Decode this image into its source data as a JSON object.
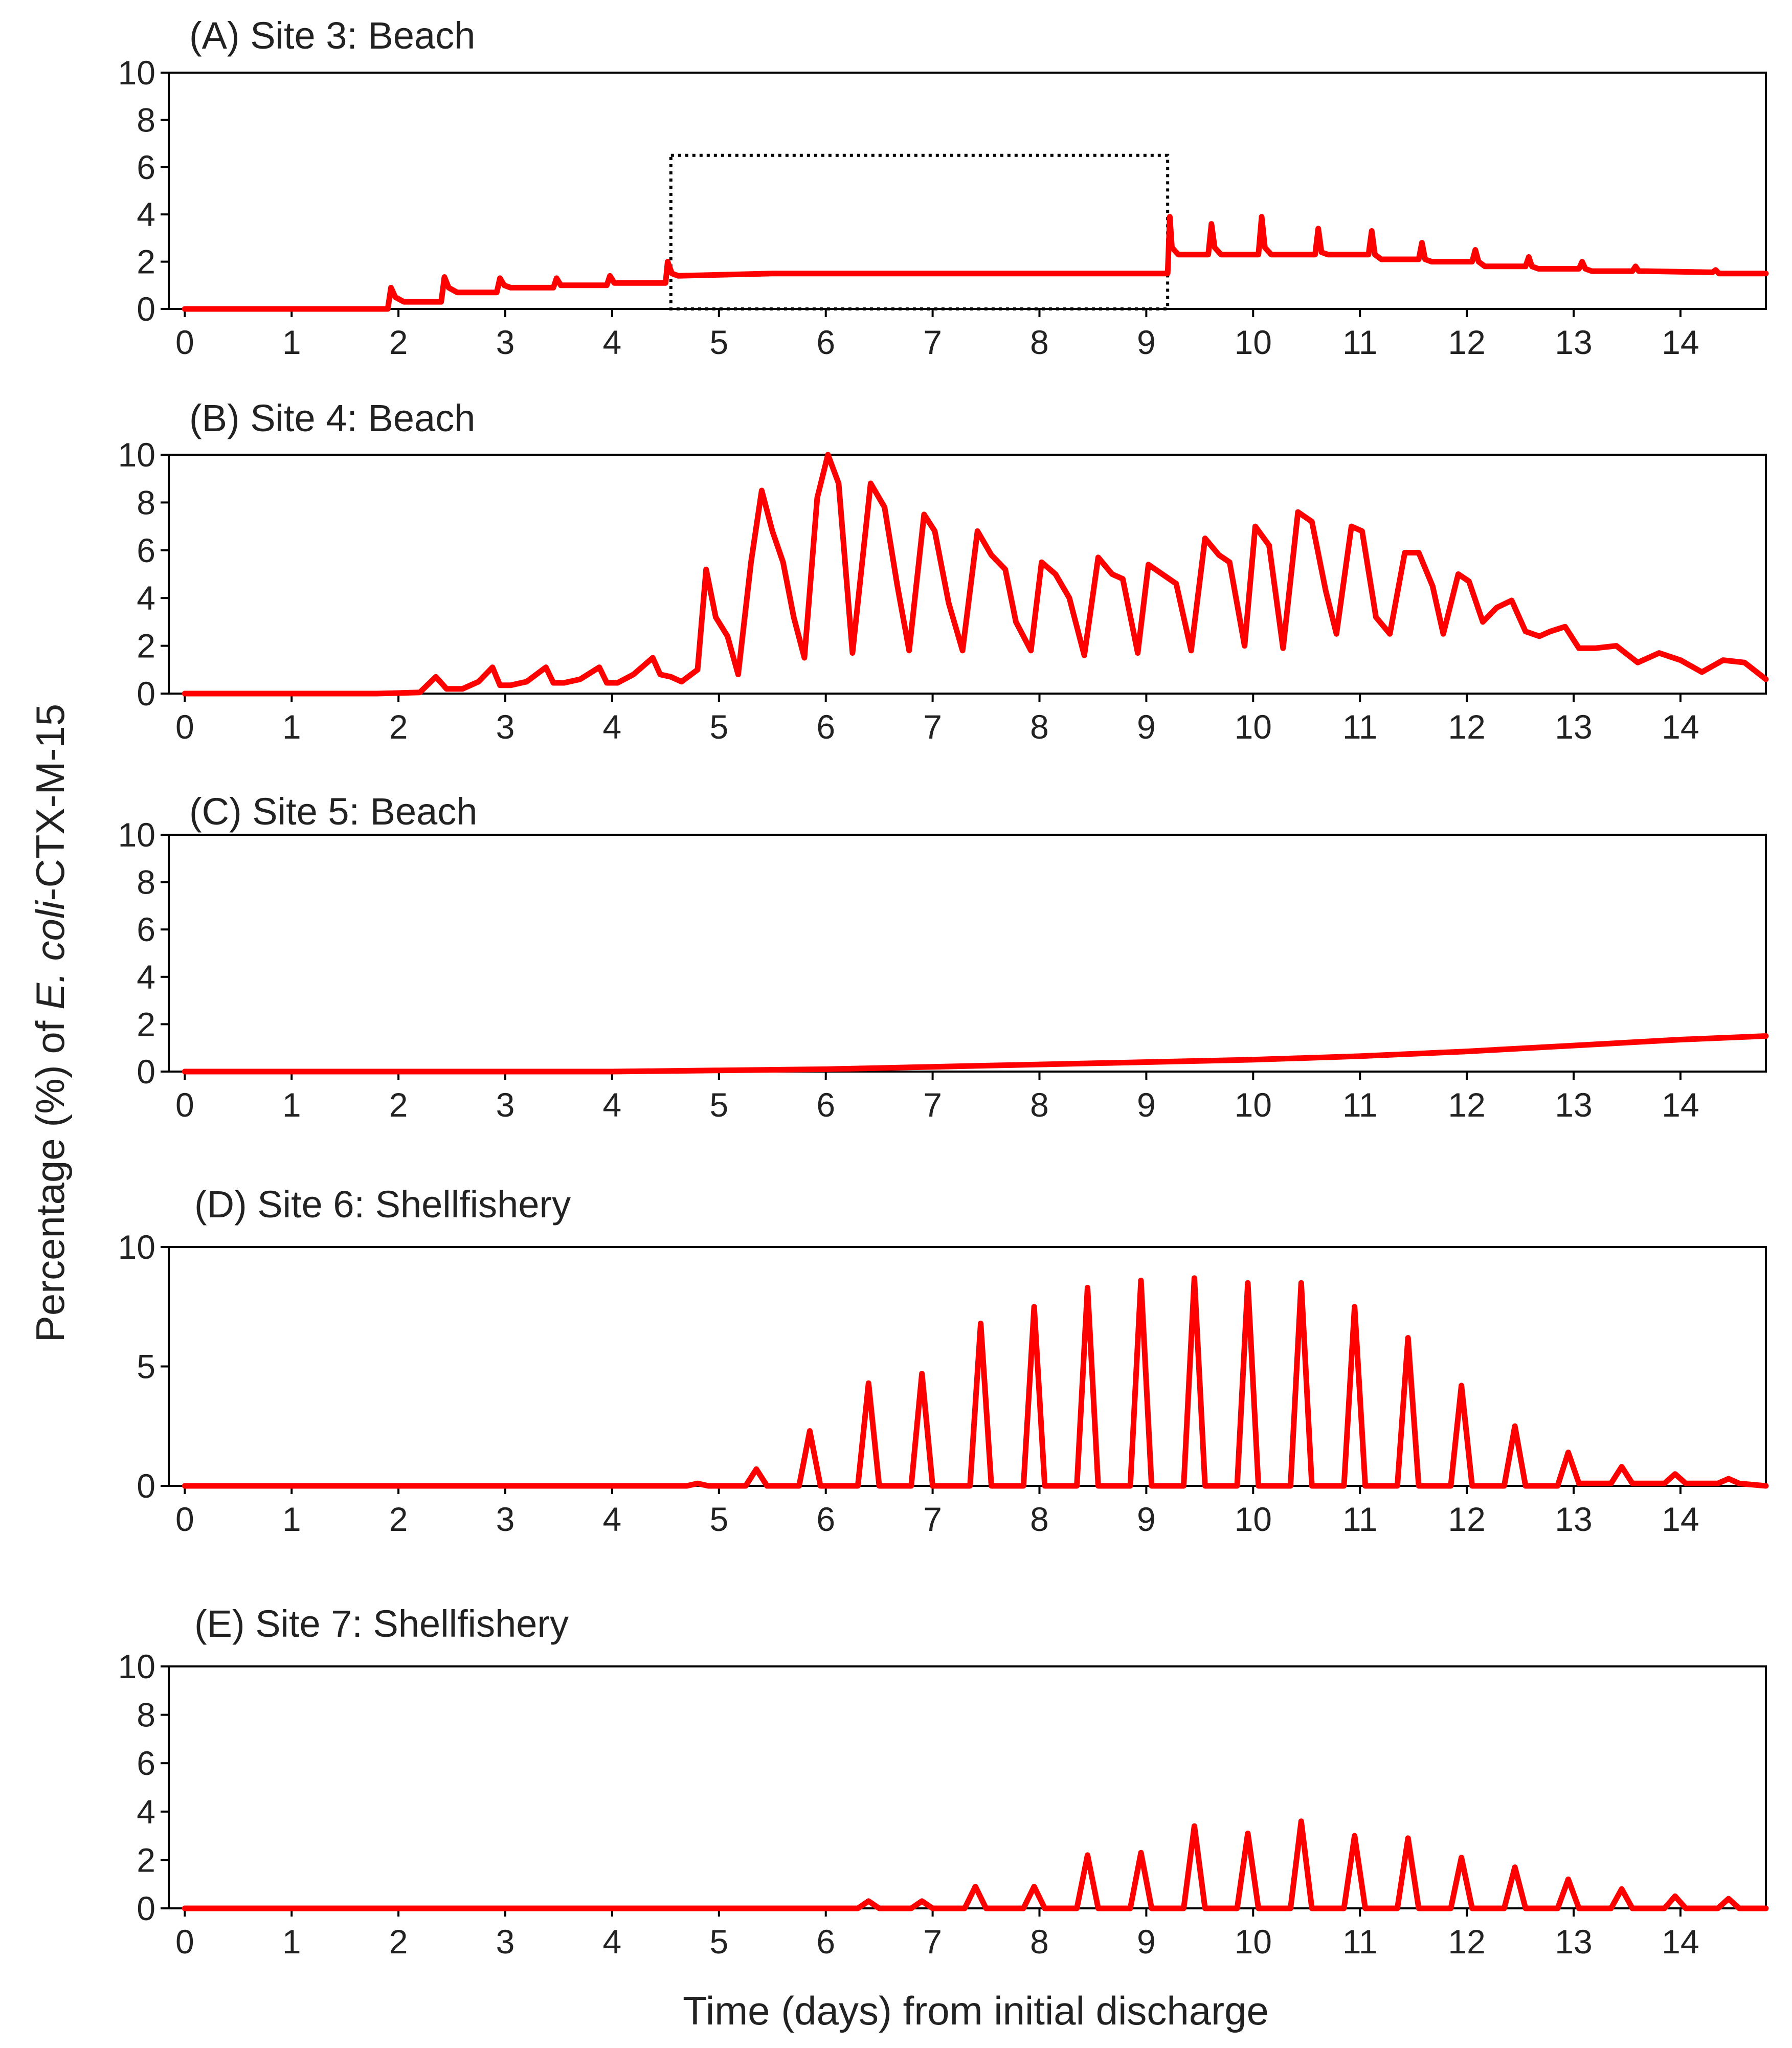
{
  "figure": {
    "ylabel_prefix": "Percentage (%) of ",
    "ylabel_italic": "E. coli",
    "ylabel_suffix": "-CTX-M-15",
    "xlabel": "Time (days) from initial discharge"
  },
  "colors": {
    "line": "#ff0000",
    "axis": "#000000",
    "text": "#222222",
    "highlight_box": "#000000"
  },
  "chart_data": [
    {
      "type": "line",
      "title": "(A) Site 3: Beach",
      "xlabel": "Time (days) from initial discharge",
      "ylabel": "Percentage (%) of E. coli-CTX-M-15",
      "xlim": [
        -0.15,
        14.8
      ],
      "ylim": [
        0,
        10
      ],
      "x_ticks": [
        0,
        1,
        2,
        3,
        4,
        5,
        6,
        7,
        8,
        9,
        10,
        11,
        12,
        13,
        14
      ],
      "y_ticks": [
        0,
        2,
        4,
        6,
        8,
        10
      ],
      "y_tick_labels": [
        "0",
        "2",
        "4",
        "6",
        "8",
        "10"
      ],
      "highlight_box": {
        "x": [
          4.55,
          9.2
        ],
        "y": [
          0,
          6.5
        ],
        "style": "dotted"
      },
      "series": [
        {
          "name": "Site 3",
          "x": [
            0,
            1.9,
            1.93,
            1.97,
            2.05,
            2.4,
            2.43,
            2.47,
            2.55,
            2.92,
            2.95,
            2.99,
            3.05,
            3.45,
            3.48,
            3.52,
            3.58,
            3.95,
            3.98,
            4.02,
            4.08,
            4.5,
            4.52,
            4.56,
            4.62,
            5.5,
            7,
            9.2,
            9.22,
            9.24,
            9.3,
            9.58,
            9.61,
            9.64,
            9.7,
            10.05,
            10.08,
            10.11,
            10.17,
            10.58,
            10.61,
            10.64,
            10.7,
            11.08,
            11.11,
            11.14,
            11.2,
            11.55,
            11.58,
            11.61,
            11.67,
            12.05,
            12.08,
            12.11,
            12.17,
            12.55,
            12.58,
            12.61,
            12.67,
            13.05,
            13.08,
            13.11,
            13.17,
            13.55,
            13.58,
            13.61,
            13.67,
            14.3,
            14.33,
            14.36,
            14.42,
            14.8
          ],
          "values": [
            0,
            0,
            0.9,
            0.5,
            0.3,
            0.3,
            1.35,
            0.9,
            0.7,
            0.7,
            1.3,
            1,
            0.9,
            0.9,
            1.3,
            1,
            1,
            1,
            1.4,
            1.1,
            1.1,
            1.1,
            2,
            1.5,
            1.4,
            1.5,
            1.5,
            1.5,
            3.9,
            2.6,
            2.3,
            2.3,
            3.6,
            2.6,
            2.3,
            2.3,
            3.9,
            2.6,
            2.3,
            2.3,
            3.4,
            2.4,
            2.3,
            2.3,
            3.3,
            2.3,
            2.1,
            2.1,
            2.8,
            2.1,
            2,
            2,
            2.5,
            2,
            1.8,
            1.8,
            2.2,
            1.8,
            1.7,
            1.7,
            2,
            1.7,
            1.6,
            1.6,
            1.8,
            1.6,
            1.6,
            1.55,
            1.65,
            1.5,
            1.5,
            1.5
          ]
        }
      ]
    },
    {
      "type": "line",
      "title": "(B) Site 4: Beach",
      "xlabel": "Time (days) from initial discharge",
      "ylabel": "Percentage (%) of E. coli-CTX-M-15",
      "xlim": [
        -0.15,
        14.8
      ],
      "ylim": [
        0,
        10
      ],
      "x_ticks": [
        0,
        1,
        2,
        3,
        4,
        5,
        6,
        7,
        8,
        9,
        10,
        11,
        12,
        13,
        14
      ],
      "y_ticks": [
        0,
        2,
        4,
        6,
        8,
        10
      ],
      "y_tick_labels": [
        "0",
        "2",
        "4",
        "6",
        "8",
        "10"
      ],
      "series": [
        {
          "name": "Site 4",
          "x": [
            0,
            1.8,
            2.2,
            2.35,
            2.45,
            2.6,
            2.75,
            2.88,
            2.95,
            3.05,
            3.2,
            3.38,
            3.45,
            3.55,
            3.7,
            3.88,
            3.95,
            4.05,
            4.2,
            4.38,
            4.45,
            4.55,
            4.65,
            4.8,
            4.88,
            4.97,
            5.08,
            5.18,
            5.3,
            5.4,
            5.5,
            5.6,
            5.7,
            5.8,
            5.92,
            6.02,
            6.12,
            6.25,
            6.42,
            6.55,
            6.67,
            6.78,
            6.92,
            7.02,
            7.15,
            7.28,
            7.42,
            7.55,
            7.68,
            7.78,
            7.92,
            8.02,
            8.15,
            8.28,
            8.42,
            8.55,
            8.68,
            8.78,
            8.92,
            9.02,
            9.15,
            9.28,
            9.42,
            9.55,
            9.68,
            9.78,
            9.92,
            10.02,
            10.15,
            10.28,
            10.42,
            10.55,
            10.68,
            10.78,
            10.92,
            11.02,
            11.15,
            11.28,
            11.42,
            11.55,
            11.68,
            11.78,
            11.92,
            12.02,
            12.15,
            12.28,
            12.42,
            12.55,
            12.68,
            12.78,
            12.92,
            13.05,
            13.2,
            13.4,
            13.6,
            13.8,
            14,
            14.2,
            14.4,
            14.6,
            14.8
          ],
          "values": [
            0,
            0,
            0.05,
            0.7,
            0.2,
            0.2,
            0.5,
            1.1,
            0.35,
            0.35,
            0.5,
            1.1,
            0.45,
            0.45,
            0.6,
            1.1,
            0.45,
            0.45,
            0.8,
            1.5,
            0.8,
            0.7,
            0.5,
            1,
            5.2,
            3.2,
            2.4,
            0.8,
            5.5,
            8.5,
            6.8,
            5.5,
            3.2,
            1.5,
            8.2,
            10,
            8.8,
            1.7,
            8.8,
            7.8,
            4.5,
            1.8,
            7.5,
            6.8,
            3.8,
            1.8,
            6.8,
            5.8,
            5.2,
            3,
            1.8,
            5.5,
            5,
            4,
            1.6,
            5.7,
            5,
            4.8,
            1.7,
            5.4,
            5,
            4.6,
            1.8,
            6.5,
            5.8,
            5.5,
            2,
            7,
            6.2,
            1.9,
            7.6,
            7.2,
            4.3,
            2.5,
            7,
            6.8,
            3.2,
            2.5,
            5.9,
            5.9,
            4.5,
            2.5,
            5,
            4.7,
            3,
            3.6,
            3.9,
            2.6,
            2.4,
            2.6,
            2.8,
            1.9,
            1.9,
            2,
            1.3,
            1.7,
            1.4,
            0.9,
            1.4,
            1.3,
            0.6
          ]
        }
      ]
    },
    {
      "type": "line",
      "title": "(C) Site 5: Beach",
      "xlabel": "Time (days) from initial discharge",
      "ylabel": "Percentage (%) of E. coli-CTX-M-15",
      "xlim": [
        -0.15,
        14.8
      ],
      "ylim": [
        0,
        10
      ],
      "x_ticks": [
        0,
        1,
        2,
        3,
        4,
        5,
        6,
        7,
        8,
        9,
        10,
        11,
        12,
        13,
        14
      ],
      "y_ticks": [
        0,
        2,
        4,
        6,
        8,
        10
      ],
      "y_tick_labels": [
        "0",
        "2",
        "4",
        "6",
        "8",
        "10"
      ],
      "series": [
        {
          "name": "Site 5",
          "x": [
            0,
            4,
            5,
            6,
            7,
            8,
            9,
            10,
            11,
            12,
            13,
            14,
            14.8
          ],
          "values": [
            0,
            0,
            0.05,
            0.1,
            0.2,
            0.3,
            0.4,
            0.5,
            0.65,
            0.85,
            1.1,
            1.35,
            1.5
          ]
        }
      ]
    },
    {
      "type": "line",
      "title": "(D) Site 6: Shellfishery",
      "xlabel": "Time (days) from initial discharge",
      "ylabel": "Percentage (%) of E. coli-CTX-M-15",
      "xlim": [
        -0.15,
        14.8
      ],
      "ylim": [
        0,
        10
      ],
      "x_ticks": [
        0,
        1,
        2,
        3,
        4,
        5,
        6,
        7,
        8,
        9,
        10,
        11,
        12,
        13,
        14
      ],
      "y_ticks": [
        0,
        5,
        10
      ],
      "y_tick_labels": [
        "0",
        "5",
        "10"
      ],
      "peaks": {
        "x": [
          4.8,
          5.35,
          5.85,
          6.4,
          6.9,
          7.45,
          7.95,
          8.45,
          8.95,
          9.45,
          9.95,
          10.45,
          10.95,
          11.45,
          11.95,
          12.45,
          12.95,
          13.45,
          13.95,
          14.45
        ],
        "values": [
          0.1,
          0.7,
          2.3,
          4.3,
          4.7,
          6.8,
          7.5,
          8.3,
          8.6,
          8.7,
          8.5,
          8.5,
          7.5,
          6.2,
          4.2,
          2.5,
          1.4,
          0.8,
          0.5,
          0.3
        ]
      },
      "series": [
        {
          "name": "Site 6",
          "x": [
            0,
            4.7,
            4.8,
            4.9,
            5.25,
            5.35,
            5.45,
            5.75,
            5.85,
            5.95,
            6.3,
            6.4,
            6.5,
            6.8,
            6.9,
            7,
            7.35,
            7.45,
            7.55,
            7.85,
            7.95,
            8.05,
            8.35,
            8.45,
            8.55,
            8.85,
            8.95,
            9.05,
            9.35,
            9.45,
            9.55,
            9.85,
            9.95,
            10.05,
            10.35,
            10.45,
            10.55,
            10.85,
            10.95,
            11.05,
            11.35,
            11.45,
            11.55,
            11.85,
            11.95,
            12.05,
            12.35,
            12.45,
            12.55,
            12.85,
            12.95,
            13.05,
            13.35,
            13.45,
            13.55,
            13.85,
            13.95,
            14.05,
            14.35,
            14.45,
            14.55,
            14.8
          ],
          "values": [
            0,
            0,
            0.1,
            0,
            0,
            0.7,
            0,
            0,
            2.3,
            0,
            0,
            4.3,
            0,
            0,
            4.7,
            0,
            0,
            6.8,
            0,
            0,
            7.5,
            0,
            0,
            8.3,
            0,
            0,
            8.6,
            0,
            0,
            8.7,
            0,
            0,
            8.5,
            0,
            0,
            8.5,
            0,
            0,
            7.5,
            0,
            0,
            6.2,
            0,
            0,
            4.2,
            0,
            0,
            2.5,
            0,
            0,
            1.4,
            0.1,
            0.1,
            0.8,
            0.1,
            0.1,
            0.5,
            0.1,
            0.1,
            0.3,
            0.1,
            0
          ]
        }
      ]
    },
    {
      "type": "line",
      "title": "(E) Site 7: Shellfishery",
      "xlabel": "Time (days) from initial discharge",
      "ylabel": "Percentage (%) of E. coli-CTX-M-15",
      "xlim": [
        -0.15,
        14.8
      ],
      "ylim": [
        0,
        10
      ],
      "x_ticks": [
        0,
        1,
        2,
        3,
        4,
        5,
        6,
        7,
        8,
        9,
        10,
        11,
        12,
        13,
        14
      ],
      "y_ticks": [
        0,
        2,
        4,
        6,
        8,
        10
      ],
      "y_tick_labels": [
        "0",
        "2",
        "4",
        "6",
        "8",
        "10"
      ],
      "peaks": {
        "x": [
          6.4,
          6.9,
          7.4,
          7.95,
          8.45,
          8.95,
          9.45,
          9.95,
          10.45,
          10.95,
          11.45,
          11.95,
          12.45,
          12.95,
          13.45,
          13.95,
          14.45
        ],
        "values": [
          0.3,
          0.3,
          0.9,
          0.9,
          2.2,
          2.3,
          3.4,
          3.1,
          3.6,
          3,
          2.9,
          2.1,
          1.7,
          1.2,
          0.8,
          0.5,
          0.4
        ]
      },
      "series": [
        {
          "name": "Site 7",
          "x": [
            0,
            6.3,
            6.4,
            6.5,
            6.8,
            6.9,
            7,
            7.3,
            7.4,
            7.5,
            7.85,
            7.95,
            8.05,
            8.35,
            8.45,
            8.55,
            8.85,
            8.95,
            9.05,
            9.35,
            9.45,
            9.55,
            9.85,
            9.95,
            10.05,
            10.35,
            10.45,
            10.55,
            10.85,
            10.95,
            11.05,
            11.35,
            11.45,
            11.55,
            11.85,
            11.95,
            12.05,
            12.35,
            12.45,
            12.55,
            12.85,
            12.95,
            13.05,
            13.35,
            13.45,
            13.55,
            13.85,
            13.95,
            14.05,
            14.35,
            14.45,
            14.55,
            14.8
          ],
          "values": [
            0,
            0,
            0.3,
            0,
            0,
            0.3,
            0,
            0,
            0.9,
            0,
            0,
            0.9,
            0,
            0,
            2.2,
            0,
            0,
            2.3,
            0,
            0,
            3.4,
            0,
            0,
            3.1,
            0,
            0,
            3.6,
            0,
            0,
            3,
            0,
            0,
            2.9,
            0,
            0,
            2.1,
            0,
            0,
            1.7,
            0,
            0,
            1.2,
            0,
            0,
            0.8,
            0,
            0,
            0.5,
            0,
            0,
            0.4,
            0,
            0
          ]
        }
      ]
    }
  ]
}
